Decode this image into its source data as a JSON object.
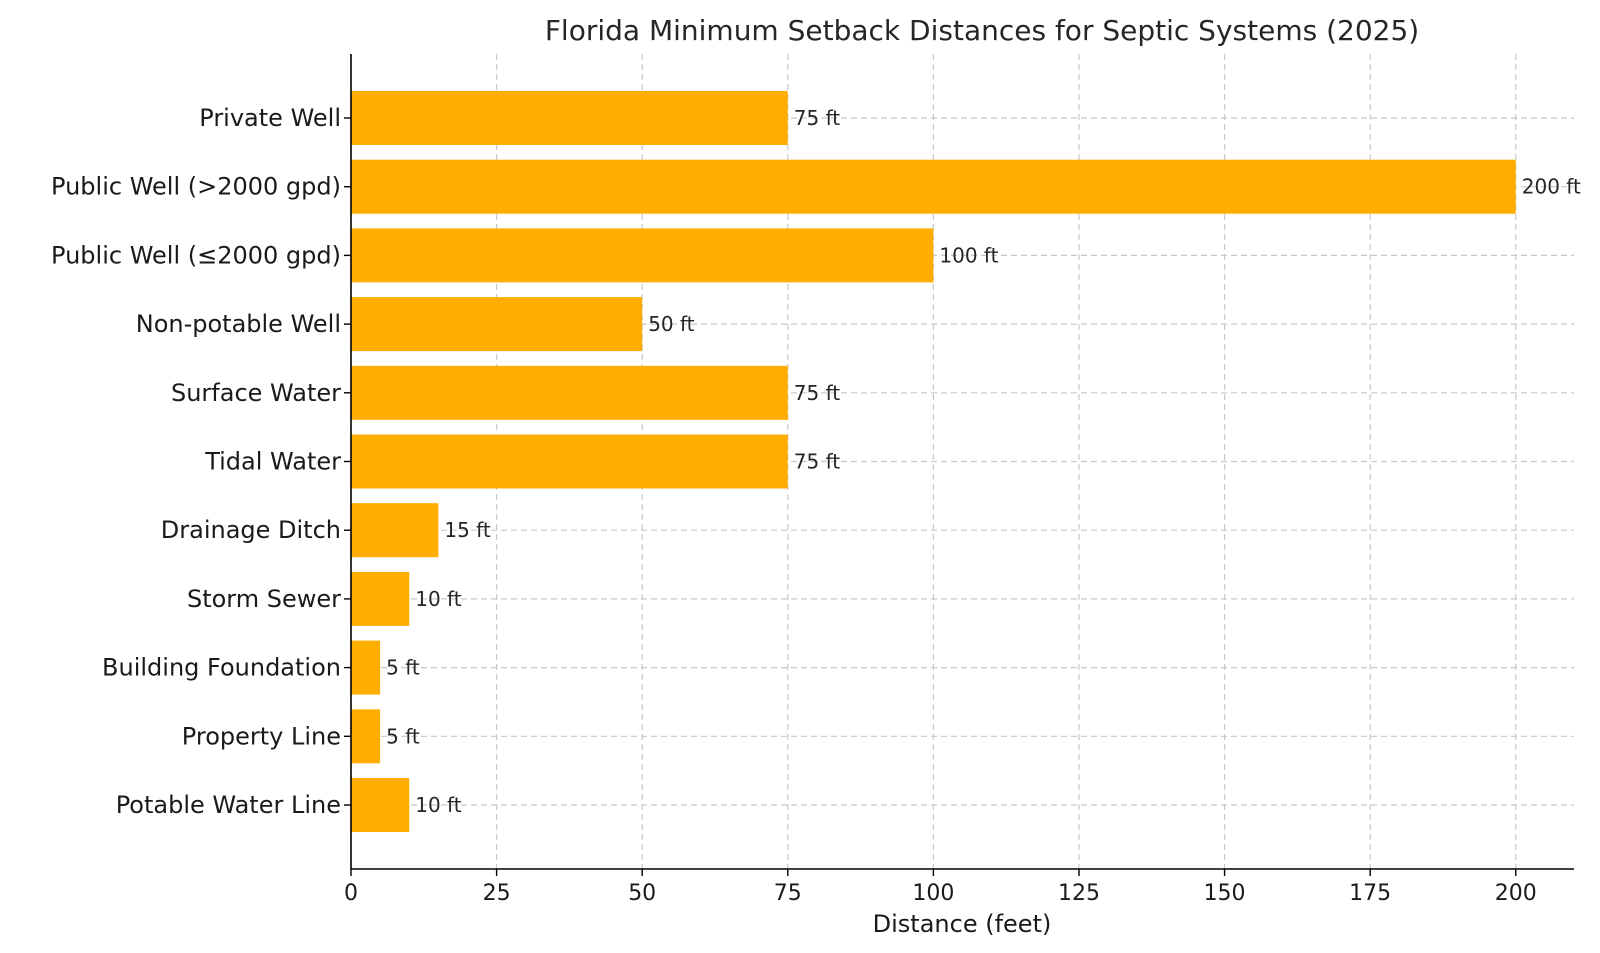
{
  "chart_data": {
    "type": "bar",
    "orientation": "horizontal",
    "title": "Florida Minimum Setback Distances for Septic Systems (2025)",
    "xlabel": "Distance (feet)",
    "ylabel": "",
    "xlim": [
      0,
      210
    ],
    "xticks": [
      0,
      25,
      50,
      75,
      100,
      125,
      150,
      175,
      200
    ],
    "grid": true,
    "bar_color": "#FFAE00",
    "categories": [
      "Private Well",
      "Public Well (>2000 gpd)",
      "Public Well (≤2000 gpd)",
      "Non-potable Well",
      "Surface Water",
      "Tidal Water",
      "Drainage Ditch",
      "Storm Sewer",
      "Building Foundation",
      "Property Line",
      "Potable Water Line"
    ],
    "values": [
      75,
      200,
      100,
      50,
      75,
      75,
      15,
      10,
      5,
      5,
      10
    ],
    "value_labels": [
      "75 ft",
      "200 ft",
      "100 ft",
      "50 ft",
      "75 ft",
      "75 ft",
      "15 ft",
      "10 ft",
      "5 ft",
      "5 ft",
      "10 ft"
    ]
  }
}
